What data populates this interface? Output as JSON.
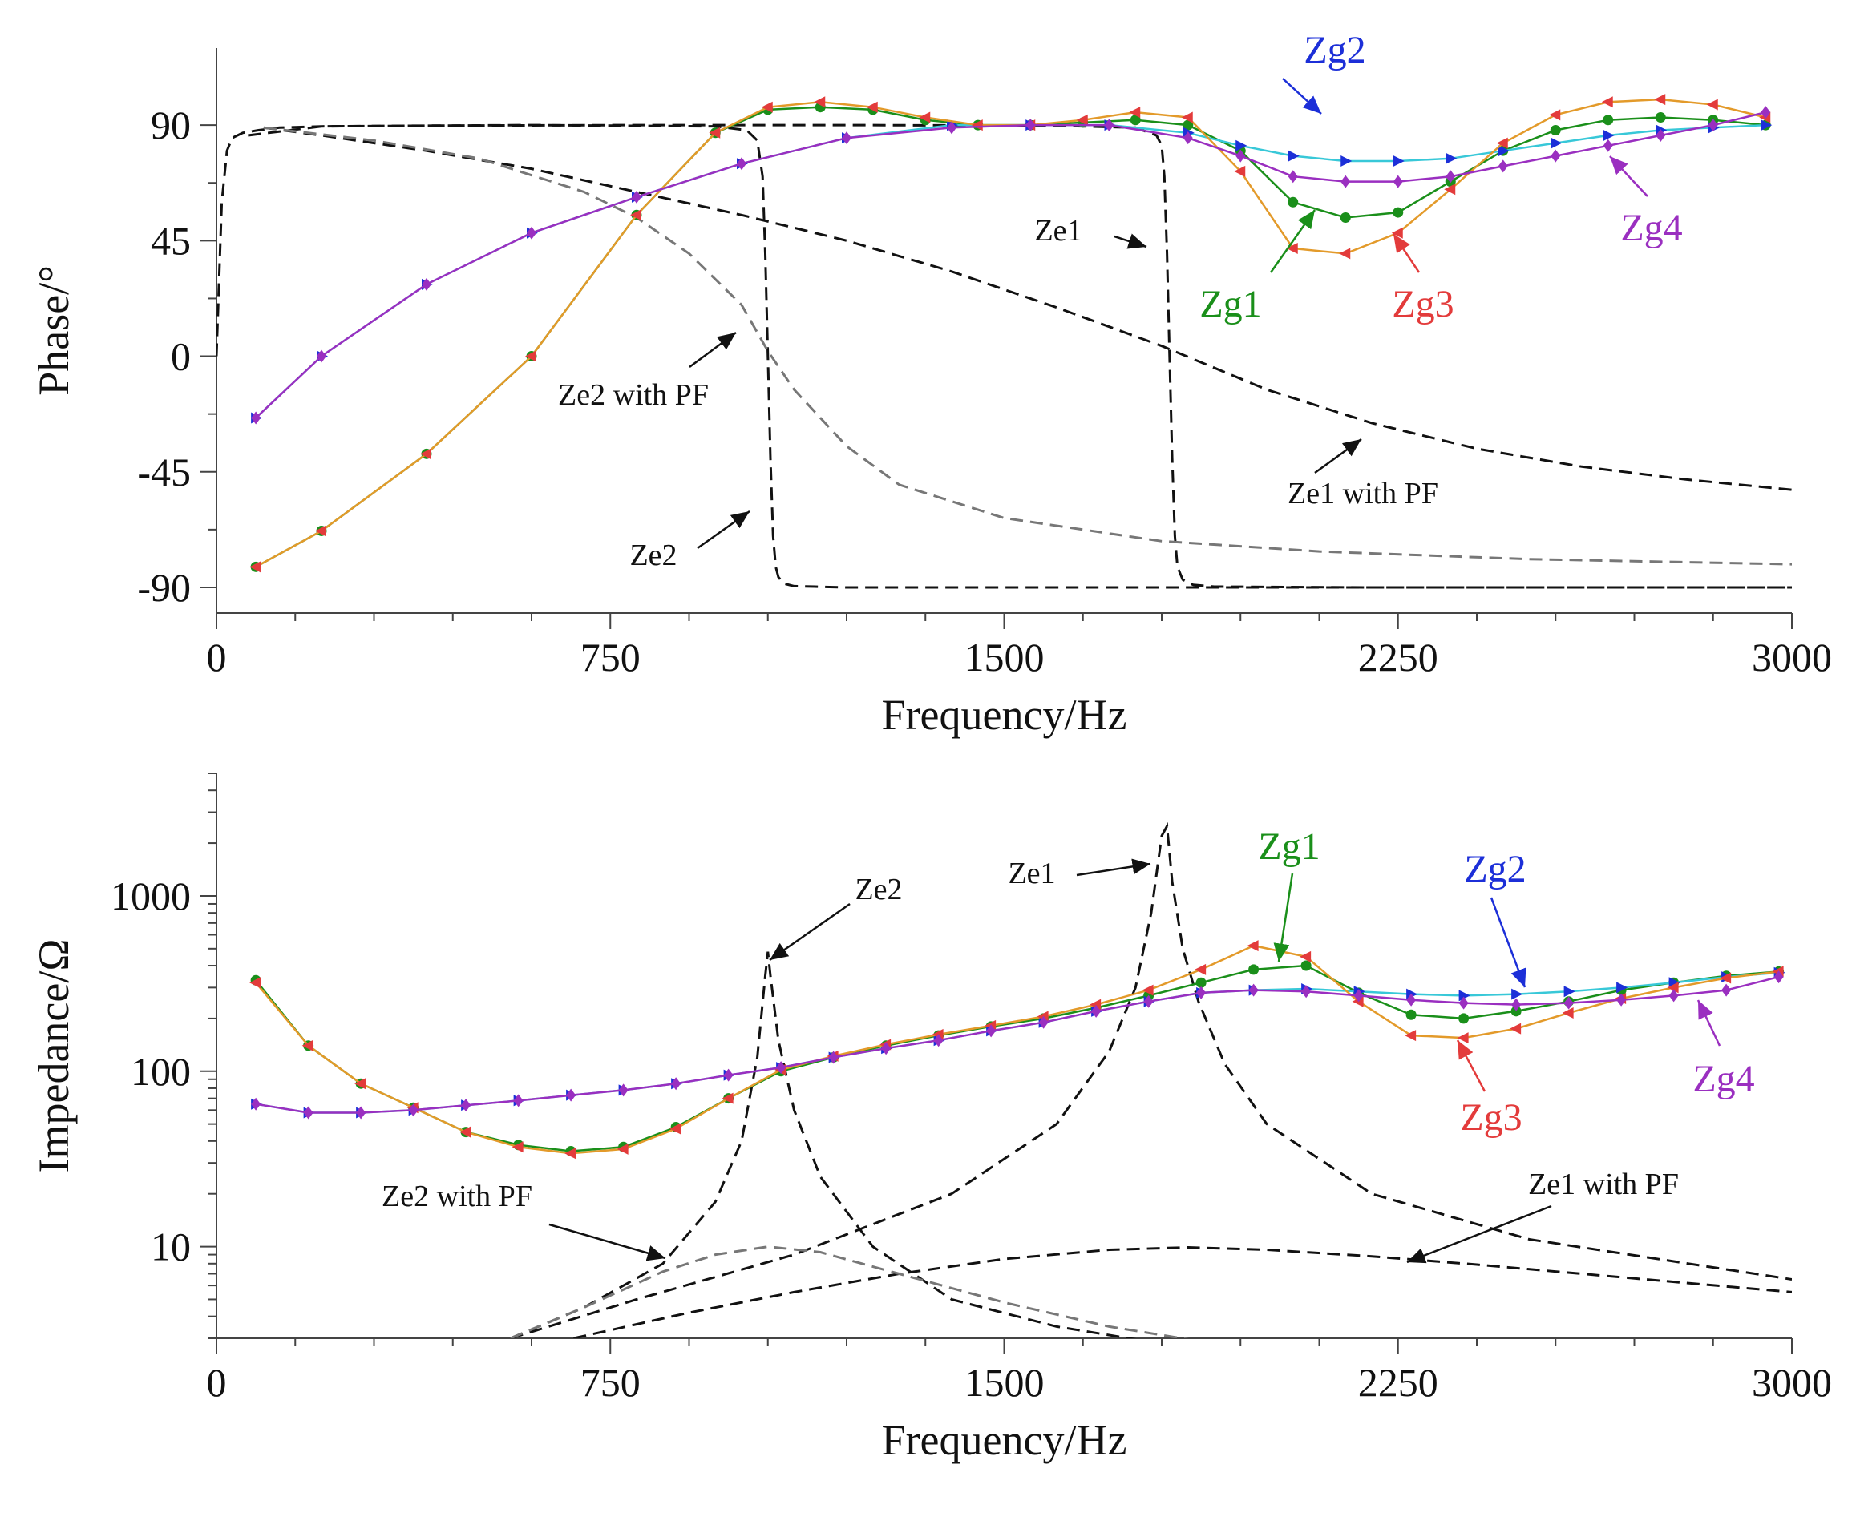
{
  "colors": {
    "axis": "#444444",
    "Ze": "#111111",
    "Ze_pf": "#777777",
    "Zg1": "#1a8f1a",
    "Zg2": "#1c2fd8",
    "Zg3": "#e33b3b",
    "Zg4": "#9a2fc0",
    "Zg2_line": "#38c8d8",
    "Zg3_line": "#e39a2a"
  },
  "chart_data": [
    {
      "type": "line",
      "id": "phase",
      "title": "",
      "xlabel": "Frequency/Hz",
      "ylabel": "Phase/°",
      "xlim": [
        0,
        3000
      ],
      "ylim": [
        -100,
        120
      ],
      "x_ticks": [
        0,
        750,
        1500,
        2250,
        3000
      ],
      "y_ticks": [
        -90,
        -45,
        0,
        45,
        90
      ],
      "x_tick_labels": [
        "0",
        "750",
        "1500",
        "2250",
        "3000"
      ],
      "y_tick_labels": [
        "-90",
        "-45",
        "0",
        "45",
        "90"
      ],
      "series": [
        {
          "name": "Ze1",
          "style": "dash",
          "color": "Ze",
          "x": [
            0,
            10,
            20,
            30,
            50,
            80,
            120,
            200,
            400,
            800,
            1200,
            1600,
            1750,
            1790,
            1800,
            1805,
            1810,
            1815,
            1820,
            1825,
            1830,
            1840,
            1860,
            1900,
            2200,
            2600,
            3000
          ],
          "y": [
            0,
            60,
            80,
            85,
            87,
            88,
            89,
            89.5,
            89.8,
            90,
            90,
            89.8,
            89,
            86,
            82,
            70,
            40,
            0,
            -40,
            -70,
            -82,
            -87,
            -89,
            -89.7,
            -90,
            -90,
            -90
          ]
        },
        {
          "name": "Ze2",
          "style": "dash",
          "color": "Ze",
          "x": [
            60,
            200,
            600,
            950,
            1010,
            1030,
            1040,
            1045,
            1050,
            1055,
            1060,
            1065,
            1070,
            1080,
            1100,
            1200,
            1500,
            3000
          ],
          "y": [
            86,
            89.5,
            90,
            89.5,
            88,
            84,
            70,
            40,
            0,
            -40,
            -70,
            -82,
            -86,
            -88.5,
            -89.5,
            -90,
            -90,
            -90
          ]
        },
        {
          "name": "Ze1 with PF",
          "style": "dash",
          "color": "Ze",
          "x": [
            90,
            200,
            400,
            600,
            800,
            1000,
            1200,
            1400,
            1600,
            1800,
            2000,
            2200,
            2400,
            2600,
            2800,
            3000
          ],
          "y": [
            89,
            86,
            80,
            73,
            64,
            55,
            45,
            33,
            19,
            4,
            -13,
            -26,
            -36,
            -43,
            -48,
            -52
          ]
        },
        {
          "name": "Ze2 with PF",
          "style": "dash",
          "color": "Ze_pf",
          "x": [
            90,
            300,
            500,
            700,
            800,
            900,
            1000,
            1050,
            1100,
            1200,
            1300,
            1500,
            1800,
            2100,
            2500,
            3000
          ],
          "y": [
            89,
            84,
            77,
            64,
            54,
            40,
            20,
            2,
            -13,
            -35,
            -50,
            -63,
            -72,
            -76,
            -79,
            -81
          ]
        },
        {
          "name": "Zg1",
          "style": "marker-line",
          "color": "Zg1",
          "marker": "circle",
          "x": [
            75,
            200,
            400,
            600,
            800,
            950,
            1050,
            1150,
            1250,
            1350,
            1450,
            1550,
            1650,
            1750,
            1850,
            1950,
            2050,
            2150,
            2250,
            2350,
            2450,
            2550,
            2650,
            2750,
            2850,
            2950
          ],
          "y": [
            -82,
            -68,
            -38,
            0,
            55,
            87,
            96,
            97,
            96,
            92,
            90,
            90,
            91,
            92,
            90,
            80,
            60,
            54,
            56,
            68,
            80,
            88,
            92,
            93,
            92,
            90
          ]
        },
        {
          "name": "Zg2",
          "style": "marker-line",
          "color": "Zg2",
          "marker": "triangle",
          "x": [
            75,
            200,
            400,
            600,
            800,
            1000,
            1200,
            1400,
            1550,
            1700,
            1850,
            1950,
            2050,
            2150,
            2250,
            2350,
            2450,
            2550,
            2650,
            2750,
            2850,
            2950
          ],
          "y": [
            -24,
            0,
            28,
            48,
            62,
            75,
            85,
            90,
            90,
            90,
            87,
            82,
            78,
            76,
            76,
            77,
            80,
            83,
            86,
            88,
            89,
            90
          ]
        },
        {
          "name": "Zg3",
          "style": "marker-line",
          "color": "Zg3",
          "marker": "triangle",
          "x": [
            75,
            200,
            400,
            600,
            800,
            950,
            1050,
            1150,
            1250,
            1350,
            1450,
            1550,
            1650,
            1750,
            1850,
            1950,
            2050,
            2150,
            2250,
            2350,
            2450,
            2550,
            2650,
            2750,
            2850,
            2950
          ],
          "y": [
            -82,
            -68,
            -38,
            0,
            55,
            87,
            97,
            99,
            97,
            93,
            90,
            90,
            92,
            95,
            93,
            72,
            42,
            40,
            48,
            65,
            83,
            94,
            99,
            100,
            98,
            93
          ]
        },
        {
          "name": "Zg4",
          "style": "marker-line",
          "color": "Zg4",
          "marker": "diamond",
          "x": [
            75,
            200,
            400,
            600,
            800,
            1000,
            1200,
            1400,
            1550,
            1700,
            1850,
            1950,
            2050,
            2150,
            2250,
            2350,
            2450,
            2550,
            2650,
            2750,
            2850,
            2950
          ],
          "y": [
            -24,
            0,
            28,
            48,
            62,
            75,
            85,
            89,
            90,
            90,
            85,
            78,
            70,
            68,
            68,
            70,
            74,
            78,
            82,
            86,
            90,
            95
          ]
        }
      ],
      "annotations": [
        {
          "text": "Zg2",
          "color": "Zg2"
        },
        {
          "text": "Ze1",
          "color": "Ze"
        },
        {
          "text": "Zg4",
          "color": "Zg4"
        },
        {
          "text": "Zg1",
          "color": "Zg1"
        },
        {
          "text": "Zg3",
          "color": "Zg3"
        },
        {
          "text": "Ze2 with PF",
          "color": "Ze"
        },
        {
          "text": "Ze1 with PF",
          "color": "Ze"
        },
        {
          "text": "Ze2",
          "color": "Ze"
        }
      ]
    },
    {
      "type": "line",
      "id": "impedance",
      "title": "",
      "xlabel": "Frequency/Hz",
      "ylabel": "Impedance/Ω",
      "xlim": [
        0,
        3000
      ],
      "ylim": [
        3,
        5000
      ],
      "yscale": "log",
      "x_ticks": [
        0,
        750,
        1500,
        2250,
        3000
      ],
      "y_ticks": [
        10,
        100,
        1000
      ],
      "x_tick_labels": [
        "0",
        "750",
        "1500",
        "2250",
        "3000"
      ],
      "y_tick_labels": [
        "10",
        "100",
        "1000"
      ],
      "series": [
        {
          "name": "Ze1",
          "style": "dash",
          "color": "Ze",
          "x": [
            560,
            800,
            1100,
            1400,
            1600,
            1700,
            1750,
            1780,
            1800,
            1810,
            1820,
            1840,
            1870,
            1920,
            2000,
            2200,
            2500,
            3000
          ],
          "y": [
            3,
            5,
            9,
            20,
            50,
            130,
            300,
            800,
            2200,
            2500,
            1200,
            500,
            250,
            110,
            50,
            20,
            11,
            6.5
          ]
        },
        {
          "name": "Ze2",
          "style": "dash",
          "color": "Ze",
          "x": [
            560,
            700,
            850,
            950,
            1000,
            1030,
            1045,
            1050,
            1055,
            1070,
            1100,
            1150,
            1250,
            1400,
            1600,
            1900
          ],
          "y": [
            3,
            4.5,
            8,
            18,
            40,
            120,
            350,
            480,
            350,
            150,
            60,
            25,
            10,
            5,
            3.5,
            2.5
          ]
        },
        {
          "name": "Ze1 with PF",
          "style": "dash",
          "color": "Ze",
          "x": [
            680,
            900,
            1100,
            1300,
            1500,
            1700,
            1850,
            2000,
            2200,
            2400,
            2600,
            2800,
            3000
          ],
          "y": [
            3,
            4.2,
            5.5,
            7,
            8.5,
            9.6,
            9.9,
            9.6,
            8.8,
            7.9,
            7,
            6.2,
            5.5
          ]
        },
        {
          "name": "Ze2 with PF",
          "style": "dash",
          "color": "Ze_pf",
          "x": [
            560,
            700,
            850,
            950,
            1050,
            1150,
            1300,
            1500,
            1700,
            1900
          ],
          "y": [
            3,
            4.5,
            7.2,
            9,
            10,
            9.3,
            7,
            4.8,
            3.5,
            2.8
          ]
        },
        {
          "name": "Zg1",
          "style": "marker-line",
          "color": "Zg1",
          "marker": "circle",
          "x": [
            75,
            175,
            275,
            375,
            475,
            575,
            675,
            775,
            875,
            975,
            1075,
            1175,
            1275,
            1375,
            1475,
            1575,
            1675,
            1775,
            1875,
            1975,
            2075,
            2175,
            2275,
            2375,
            2475,
            2575,
            2675,
            2775,
            2875,
            2975
          ],
          "y": [
            330,
            140,
            85,
            62,
            45,
            38,
            35,
            37,
            48,
            70,
            100,
            120,
            140,
            160,
            180,
            200,
            230,
            270,
            320,
            380,
            400,
            280,
            210,
            200,
            220,
            250,
            290,
            320,
            350,
            370
          ]
        },
        {
          "name": "Zg2",
          "style": "marker-line",
          "color": "Zg2",
          "marker": "triangle",
          "x": [
            75,
            175,
            275,
            375,
            475,
            575,
            675,
            775,
            875,
            975,
            1075,
            1175,
            1275,
            1375,
            1475,
            1575,
            1675,
            1775,
            1875,
            1975,
            2075,
            2175,
            2275,
            2375,
            2475,
            2575,
            2675,
            2775,
            2875,
            2975
          ],
          "y": [
            65,
            58,
            58,
            60,
            64,
            68,
            73,
            78,
            85,
            95,
            105,
            120,
            135,
            150,
            170,
            190,
            220,
            250,
            280,
            290,
            295,
            285,
            275,
            270,
            275,
            285,
            300,
            320,
            345,
            365
          ]
        },
        {
          "name": "Zg3",
          "style": "marker-line",
          "color": "Zg3",
          "marker": "triangle",
          "x": [
            75,
            175,
            275,
            375,
            475,
            575,
            675,
            775,
            875,
            975,
            1075,
            1175,
            1275,
            1375,
            1475,
            1575,
            1675,
            1775,
            1875,
            1975,
            2075,
            2175,
            2275,
            2375,
            2475,
            2575,
            2675,
            2775,
            2875,
            2975
          ],
          "y": [
            320,
            140,
            85,
            62,
            45,
            37,
            34,
            36,
            47,
            70,
            102,
            122,
            142,
            162,
            182,
            205,
            240,
            290,
            380,
            520,
            450,
            250,
            160,
            155,
            175,
            215,
            260,
            300,
            340,
            370
          ]
        },
        {
          "name": "Zg4",
          "style": "marker-line",
          "color": "Zg4",
          "marker": "diamond",
          "x": [
            75,
            175,
            275,
            375,
            475,
            575,
            675,
            775,
            875,
            975,
            1075,
            1175,
            1275,
            1375,
            1475,
            1575,
            1675,
            1775,
            1875,
            1975,
            2075,
            2175,
            2275,
            2375,
            2475,
            2575,
            2675,
            2775,
            2875,
            2975
          ],
          "y": [
            65,
            58,
            58,
            60,
            64,
            68,
            73,
            78,
            85,
            95,
            105,
            120,
            135,
            150,
            170,
            190,
            220,
            250,
            280,
            290,
            285,
            270,
            255,
            245,
            240,
            245,
            255,
            270,
            290,
            345
          ]
        }
      ],
      "annotations": [
        {
          "text": "Zg1",
          "color": "Zg1"
        },
        {
          "text": "Ze1",
          "color": "Ze"
        },
        {
          "text": "Ze2",
          "color": "Ze"
        },
        {
          "text": "Zg2",
          "color": "Zg2"
        },
        {
          "text": "Zg4",
          "color": "Zg4"
        },
        {
          "text": "Zg3",
          "color": "Zg3"
        },
        {
          "text": "Ze2 with PF",
          "color": "Ze"
        },
        {
          "text": "Ze1 with PF",
          "color": "Ze"
        }
      ]
    }
  ]
}
